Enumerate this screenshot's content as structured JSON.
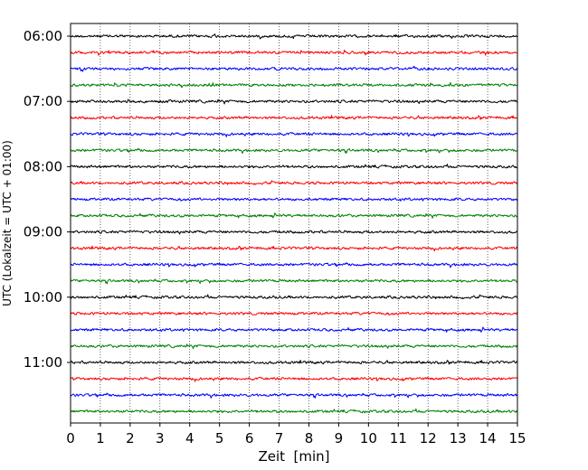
{
  "chart_data": {
    "type": "line",
    "title": "",
    "xlabel": "Zeit  [min]",
    "ylabel": "UTC (Lokalzeit = UTC + 01:00)",
    "xlim": [
      0,
      15
    ],
    "x_ticks": [
      "0",
      "1",
      "2",
      "3",
      "4",
      "5",
      "6",
      "7",
      "8",
      "9",
      "10",
      "11",
      "12",
      "13",
      "14",
      "15"
    ],
    "y_ticks": [
      "06:00",
      "07:00",
      "08:00",
      "09:00",
      "10:00",
      "11:00"
    ],
    "trace_interval_min": 15,
    "trace_colors": [
      "#000000",
      "#ff0000",
      "#0000ff",
      "#008000"
    ],
    "traces": [
      "06:00",
      "06:15",
      "06:30",
      "06:45",
      "07:00",
      "07:15",
      "07:30",
      "07:45",
      "08:00",
      "08:15",
      "08:30",
      "08:45",
      "09:00",
      "09:15",
      "09:30",
      "09:45",
      "10:00",
      "10:15",
      "10:30",
      "10:45",
      "11:00",
      "11:15",
      "11:30",
      "11:45"
    ],
    "vertical_grid": "dotted",
    "legend": "none"
  }
}
